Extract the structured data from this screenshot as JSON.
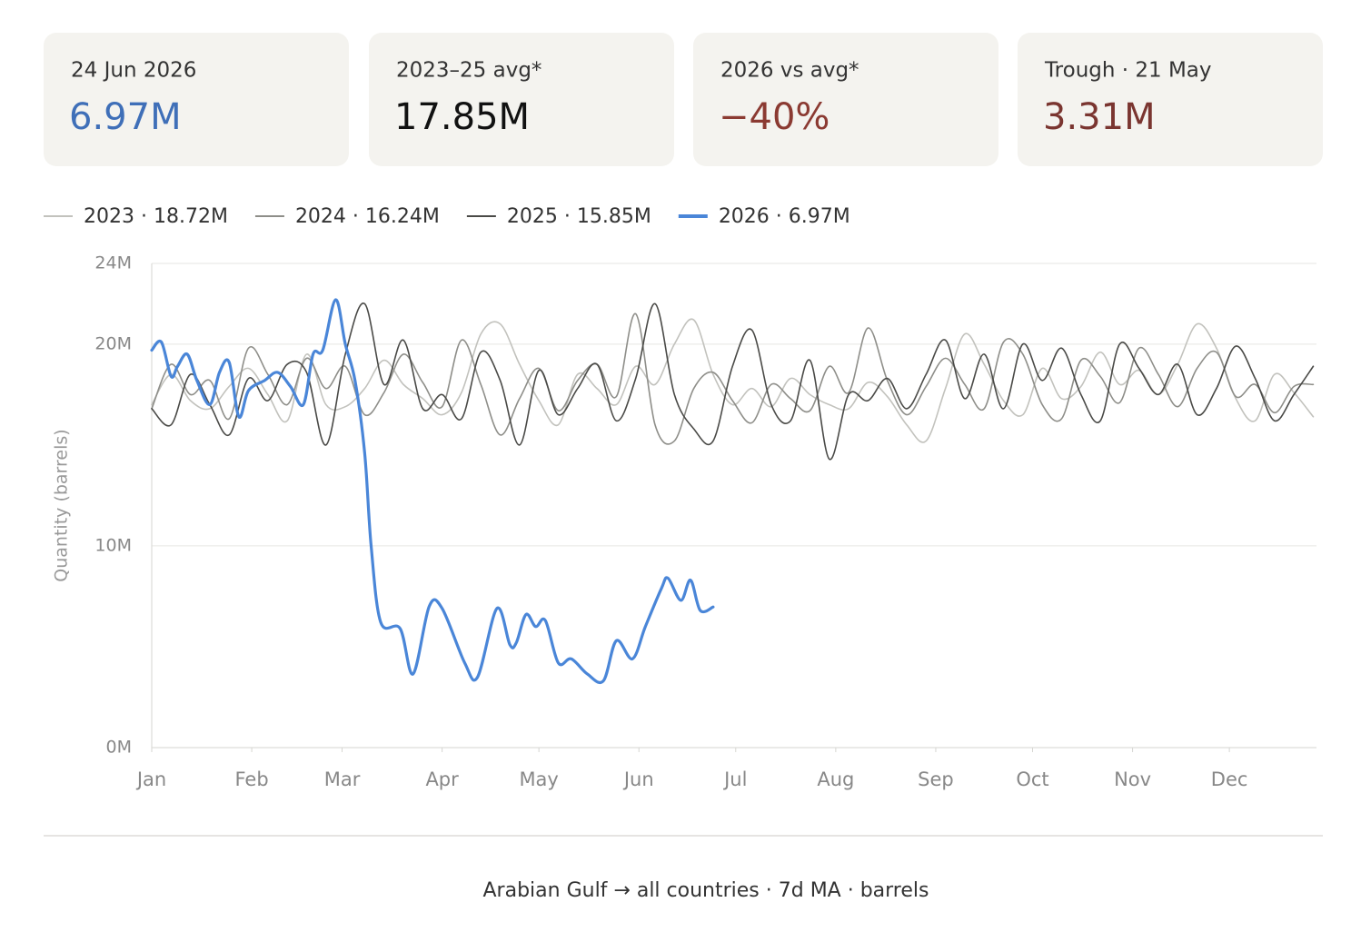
{
  "cards": [
    {
      "label": "24 Jun 2026",
      "value": "6.97M",
      "color": "#3f6fb8"
    },
    {
      "label": "2023–25 avg*",
      "value": "17.85M",
      "color": "#111111"
    },
    {
      "label": "2026 vs avg*",
      "value": "−40%",
      "color": "#8b3a32"
    },
    {
      "label": "Trough · 21 May",
      "value": "3.31M",
      "color": "#7a3530"
    }
  ],
  "chart_data": {
    "type": "line",
    "y_label": "Quantity (barrels)",
    "xlim": [
      1,
      362
    ],
    "xticks": [
      {
        "value": 1,
        "label": "Jan"
      },
      {
        "value": 32,
        "label": "Feb"
      },
      {
        "value": 60,
        "label": "Mar"
      },
      {
        "value": 91,
        "label": "Apr"
      },
      {
        "value": 121,
        "label": "May"
      },
      {
        "value": 152,
        "label": "Jun"
      },
      {
        "value": 182,
        "label": "Jul"
      },
      {
        "value": 213,
        "label": "Aug"
      },
      {
        "value": 244,
        "label": "Sep"
      },
      {
        "value": 274,
        "label": "Oct"
      },
      {
        "value": 305,
        "label": "Nov"
      },
      {
        "value": 335,
        "label": "Dec"
      }
    ],
    "ylim": [
      0,
      24
    ],
    "yticks": [
      {
        "value": 0,
        "label": "0M"
      },
      {
        "value": 10,
        "label": "10M"
      },
      {
        "value": 20,
        "label": "20M"
      },
      {
        "value": 24,
        "label": "24M"
      }
    ],
    "grid": true,
    "series": [
      {
        "name": "2023 · 18.72M",
        "color": "#c2c2bd",
        "width": 1.6,
        "x": [
          1,
          7,
          13,
          19,
          25,
          31,
          37,
          43,
          49,
          55,
          61,
          67,
          73,
          79,
          85,
          91,
          97,
          103,
          109,
          115,
          121,
          127,
          133,
          139,
          145,
          151,
          157,
          163,
          169,
          175,
          181,
          187,
          193,
          199,
          205,
          211,
          217,
          223,
          229,
          235,
          241,
          247,
          253,
          259,
          265,
          271,
          277,
          283,
          289,
          295,
          301,
          307,
          313,
          319,
          325,
          331,
          337,
          343,
          349,
          355,
          361
        ],
        "values": [
          17.0,
          18.5,
          17.2,
          16.8,
          17.9,
          18.8,
          17.5,
          16.2,
          19.5,
          17.0,
          16.9,
          17.8,
          19.2,
          18.0,
          17.3,
          16.5,
          17.6,
          20.5,
          21.0,
          19.0,
          17.2,
          16.0,
          18.5,
          17.8,
          17.0,
          18.9,
          18.0,
          20.0,
          21.2,
          18.5,
          17.0,
          17.8,
          16.9,
          18.3,
          17.5,
          17.0,
          16.8,
          18.1,
          17.4,
          16.0,
          15.2,
          17.8,
          20.5,
          19.0,
          17.2,
          16.5,
          18.8,
          17.3,
          17.9,
          19.6,
          18.0,
          18.7,
          17.5,
          19.0,
          21.0,
          19.8,
          17.3,
          16.2,
          18.5,
          17.6,
          16.4
        ]
      },
      {
        "name": "2024 · 16.24M",
        "color": "#8e8e89",
        "width": 1.6,
        "x": [
          1,
          7,
          13,
          19,
          25,
          31,
          37,
          43,
          49,
          55,
          61,
          67,
          73,
          79,
          85,
          91,
          97,
          103,
          109,
          115,
          121,
          127,
          133,
          139,
          145,
          151,
          157,
          163,
          169,
          175,
          181,
          187,
          193,
          199,
          205,
          211,
          217,
          223,
          229,
          235,
          241,
          247,
          253,
          259,
          265,
          271,
          277,
          283,
          289,
          295,
          301,
          307,
          313,
          319,
          325,
          331,
          337,
          343,
          349,
          355,
          361
        ],
        "values": [
          16.8,
          19.0,
          17.5,
          18.2,
          16.3,
          19.8,
          18.5,
          17.0,
          19.3,
          17.8,
          18.9,
          16.5,
          17.6,
          19.5,
          18.1,
          16.9,
          20.2,
          18.0,
          15.5,
          17.3,
          18.8,
          16.7,
          18.2,
          19.0,
          17.4,
          21.5,
          16.0,
          15.2,
          17.8,
          18.6,
          17.2,
          16.1,
          18.0,
          17.3,
          16.7,
          18.9,
          17.6,
          20.8,
          18.2,
          16.5,
          17.9,
          19.3,
          18.0,
          16.8,
          20.1,
          19.5,
          17.0,
          16.3,
          19.2,
          18.4,
          17.1,
          19.8,
          18.5,
          16.9,
          18.8,
          19.6,
          17.4,
          18.0,
          16.6,
          17.9,
          18.0
        ]
      },
      {
        "name": "2025 · 15.85M",
        "color": "#4a4a47",
        "width": 1.6,
        "x": [
          1,
          7,
          13,
          19,
          25,
          31,
          37,
          43,
          49,
          55,
          61,
          67,
          73,
          79,
          85,
          91,
          97,
          103,
          109,
          115,
          121,
          127,
          133,
          139,
          145,
          151,
          157,
          163,
          169,
          175,
          181,
          187,
          193,
          199,
          205,
          211,
          217,
          223,
          229,
          235,
          241,
          247,
          253,
          259,
          265,
          271,
          277,
          283,
          289,
          295,
          301,
          307,
          313,
          319,
          325,
          331,
          337,
          343,
          349,
          355,
          361
        ],
        "values": [
          16.8,
          16.0,
          18.5,
          17.0,
          15.5,
          18.3,
          17.2,
          19.0,
          18.6,
          15.0,
          19.5,
          22.0,
          18.0,
          20.2,
          16.8,
          17.5,
          16.3,
          19.6,
          18.2,
          15.0,
          18.7,
          16.5,
          17.8,
          19.0,
          16.2,
          18.3,
          22.0,
          17.5,
          15.8,
          15.2,
          18.9,
          20.7,
          17.0,
          16.2,
          19.2,
          14.3,
          17.5,
          17.2,
          18.3,
          16.8,
          18.5,
          20.2,
          17.3,
          19.5,
          16.8,
          20.0,
          18.2,
          19.8,
          17.5,
          16.2,
          20.0,
          18.8,
          17.5,
          19.0,
          16.5,
          17.8,
          19.9,
          18.3,
          16.2,
          17.5,
          18.9
        ]
      },
      {
        "name": "2026 · 6.97M",
        "color": "#4a86d8",
        "width": 3.2,
        "x": [
          1,
          4,
          7,
          9,
          12,
          15,
          19,
          22,
          25,
          28,
          31,
          36,
          40,
          44,
          48,
          51,
          54,
          58,
          61,
          64,
          67,
          69,
          72,
          78,
          82,
          87,
          91,
          98,
          102,
          108,
          112,
          114,
          117,
          120,
          123,
          127,
          131,
          136,
          141,
          145,
          150,
          154,
          159,
          161,
          165,
          168,
          171,
          175
        ],
        "values": [
          19.7,
          20.1,
          18.4,
          18.9,
          19.5,
          18.2,
          17.0,
          18.6,
          19.1,
          16.4,
          17.7,
          18.2,
          18.6,
          17.9,
          17.0,
          19.5,
          19.7,
          22.2,
          20.0,
          18.2,
          14.6,
          10.0,
          6.2,
          5.9,
          3.65,
          7.0,
          6.9,
          4.2,
          3.5,
          6.9,
          5.1,
          5.2,
          6.6,
          6.0,
          6.3,
          4.2,
          4.4,
          3.65,
          3.31,
          5.3,
          4.4,
          6.0,
          7.9,
          8.4,
          7.3,
          8.3,
          6.8,
          6.97
        ]
      }
    ]
  },
  "footer": "Arabian Gulf → all countries · 7d MA · barrels"
}
